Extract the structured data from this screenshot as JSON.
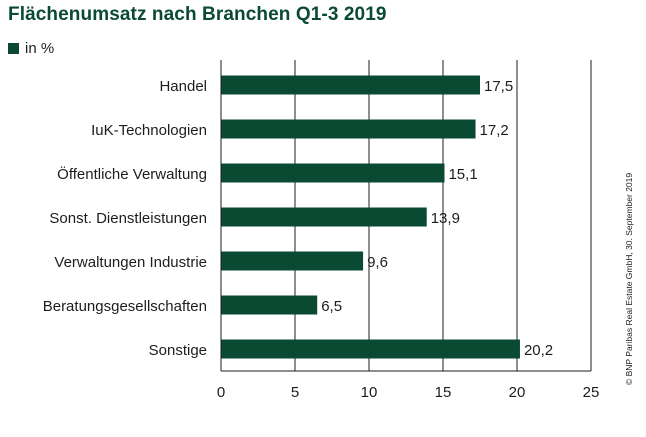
{
  "title": "Flächenumsatz nach Branchen Q1-3 2019",
  "credit": "© BNP Paribas Real Estate GmbH, 30. September 2019",
  "colors": {
    "bar": "#0a4a33",
    "grid": "#1d1d1b"
  },
  "chart_data": {
    "type": "bar",
    "orientation": "horizontal",
    "title": "Flächenumsatz nach Branchen Q1-3 2019",
    "legend": [
      "in %"
    ],
    "legend_position": "top-left",
    "categories": [
      "Handel",
      "IuK-Technologien",
      "Öffentliche Verwaltung",
      "Sonst. Dienstleistungen",
      "Verwaltungen Industrie",
      "Beratungsgesellschaften",
      "Sonstige"
    ],
    "values": [
      17.5,
      17.2,
      15.1,
      13.9,
      9.6,
      6.5,
      20.2
    ],
    "value_labels": [
      "17,5",
      "17,2",
      "15,1",
      "13,9",
      "9,6",
      "6,5",
      "20,2"
    ],
    "xlim": [
      0,
      25
    ],
    "xticks": [
      0,
      5,
      10,
      15,
      20,
      25
    ],
    "xtick_labels": [
      "0",
      "5",
      "10",
      "15",
      "20",
      "25"
    ],
    "xlabel": "",
    "ylabel": "",
    "grid": true
  }
}
